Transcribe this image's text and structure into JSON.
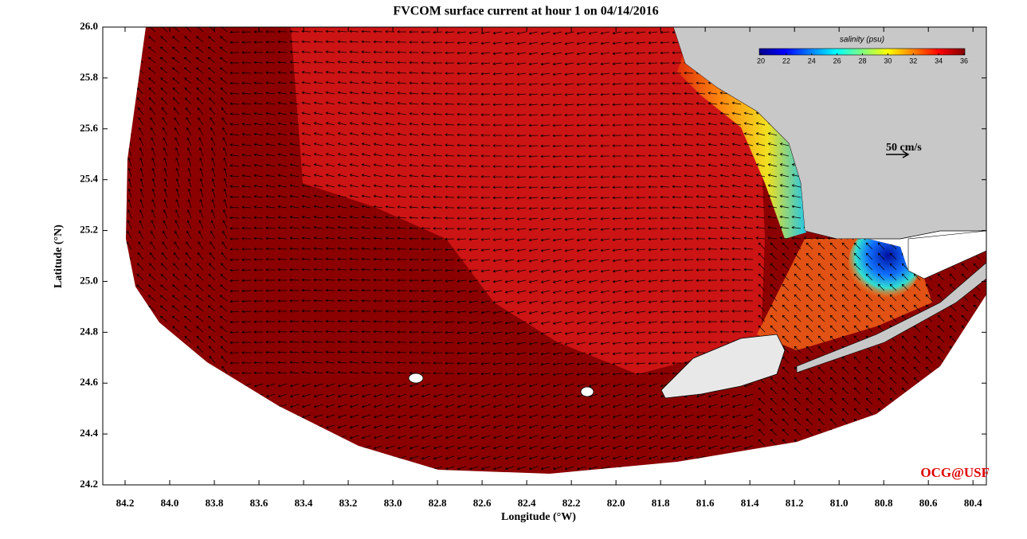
{
  "title": "FVCOM surface current at hour 1 on 04/14/2016",
  "map": {
    "xlabel": "Longitude (°W)",
    "ylabel": "Latitude (°N)",
    "xlim": [
      84.3,
      80.34
    ],
    "ylim": [
      24.2,
      26.0
    ],
    "xticks": [
      84.2,
      {
        "value": 84.0,
        "label": "84.0"
      },
      83.8,
      83.6,
      83.4,
      83.2,
      {
        "value": 83.0,
        "label": "83.0"
      },
      82.8,
      82.6,
      82.4,
      82.2,
      {
        "value": 82.0,
        "label": "82.0"
      },
      81.8,
      81.6,
      81.4,
      81.2,
      {
        "value": 81.0,
        "label": "81.0"
      },
      80.8,
      80.6,
      80.4
    ],
    "yticks": [
      24.2,
      24.4,
      24.6,
      24.8,
      {
        "value": 25.0,
        "label": "25.0"
      },
      25.2,
      25.4,
      25.6,
      25.8,
      {
        "value": 26.0,
        "label": "26.0"
      }
    ],
    "land_color": "#c8c8c8",
    "water_color": "#8b0000",
    "colorbar": {
      "label": "salinity (psu)",
      "lim": [
        20,
        36
      ],
      "ticks": [
        20,
        22,
        24,
        26,
        28,
        30,
        32,
        34,
        36
      ]
    },
    "scale_arrow_label": "50 cm/s",
    "credit": "OCG@USF"
  }
}
